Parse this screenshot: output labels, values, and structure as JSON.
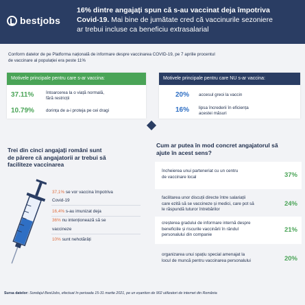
{
  "brand": {
    "name": "bestjobs"
  },
  "header": {
    "line1_bold": "16% dintre angajați spun că s-au vaccinat deja împotriva",
    "line2_bold": "Covid-19.",
    "line2_rest": " Mai bine de jumătate cred că vaccinurile sezoniere",
    "line3": "ar trebui incluse ca beneficiu extrasalarial"
  },
  "intro": {
    "line1": "Conform datelor de pe Platforma națională de informare despre vaccinarea COVID-19, pe 7 aprilie procentul",
    "line2": "de vaccinare al populației era peste 11%"
  },
  "reasons_yes": {
    "title": "Motivele principale pentru care s-ar vaccina:",
    "items": [
      {
        "pct": "37.11%",
        "line1": "întoarcerea la o viață normală,",
        "line2": "fără restricții"
      },
      {
        "pct": "10.79%",
        "line1": "dorința de a-i proteja pe cei dragi",
        "line2": ""
      }
    ],
    "color": "#4aa457"
  },
  "reasons_no": {
    "title": "Motivele principale pentru care NU s-ar vaccina:",
    "items": [
      {
        "pct": "20%",
        "line1": "accesul greoi la vaccin",
        "line2": ""
      },
      {
        "pct": "16%",
        "line1": "lipsa încrederii în eficiența",
        "line2": "acestei măsuri"
      }
    ],
    "color": "#2a3d63"
  },
  "question_left": {
    "line1": "Trei din cinci angajați români sunt",
    "line2": "de părere că angajatorii ar trebui să",
    "line3": "faciliteze vaccinarea"
  },
  "survey": [
    {
      "pct": "37,1%",
      "text": " se vor vaccina împotriva",
      "text2": "Covid-19"
    },
    {
      "pct": "16,4%",
      "text": " s-au imunizat deja",
      "text2": ""
    },
    {
      "pct": "36%",
      "text": " nu intenționează să se",
      "text2": "vaccineze"
    },
    {
      "pct": "10%",
      "text": " sunt nehotărâți",
      "text2": ""
    }
  ],
  "question_right": {
    "line1": "Cum ar putea în mod concret angajatorul să",
    "line2": "ajute în acest sens?"
  },
  "solutions": [
    {
      "lines": [
        "încheierea unui parteneriat cu un centru",
        "de vaccinare local"
      ],
      "pct": "37%"
    },
    {
      "lines": [
        "facilitarea unor discuții directe între salariații",
        "care ezită să se vaccineze și medici, care pot să",
        "le răspundă tuturor întrebărilor"
      ],
      "pct": "24%"
    },
    {
      "lines": [
        "creșterea gradului de informare internă despre",
        "beneficiile și riscurile vaccinării în rândul",
        "personalului din companie"
      ],
      "pct": "21%"
    },
    {
      "lines": [
        "organizarea unui spațiu special amenajat la",
        "locul de muncă pentru vaccinarea personalului"
      ],
      "pct": "20%"
    }
  ],
  "footer": {
    "label": "Sursa datelor:",
    "text": " Sondajul BestJobs, efectuat în perioada 15-31 martie 2021, pe un eșantion de 902 utilizatori de internet din România"
  },
  "colors": {
    "navy": "#2a3d63",
    "green": "#4aa457",
    "orange": "#de6c3c",
    "syringe": "#2f6fc4"
  }
}
